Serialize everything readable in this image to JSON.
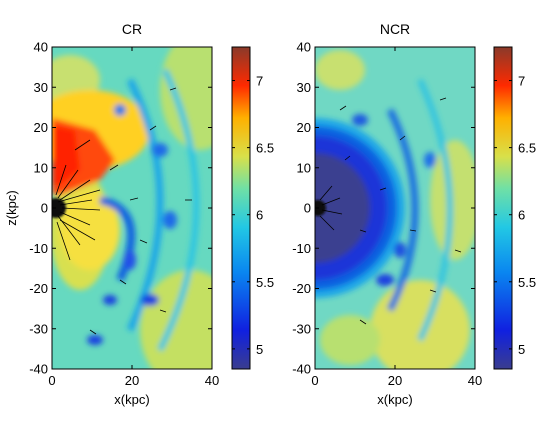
{
  "chart_data": [
    {
      "type": "heatmap",
      "title": "CR",
      "xlabel": "x(kpc)",
      "ylabel": "z(kpc)",
      "xlim": [
        0,
        40
      ],
      "ylim": [
        -40,
        40
      ],
      "xticks": [
        0,
        20,
        40
      ],
      "yticks": [
        40,
        30,
        20,
        10,
        0,
        -10,
        -20,
        -30,
        -40
      ],
      "colorbar": {
        "range": [
          4.85,
          7.25
        ],
        "ticks": [
          7,
          6.5,
          6,
          5.5,
          5
        ]
      },
      "overlay": "velocity-arrows",
      "features": [
        {
          "kind": "hot-cone",
          "level": 6.9,
          "x": [
            0,
            16
          ],
          "z": [
            10,
            24
          ]
        },
        {
          "kind": "dense-core",
          "x": 0,
          "z": 0,
          "radius": 4
        },
        {
          "kind": "shells",
          "level_range": [
            5.8,
            6.2
          ],
          "center": [
            0,
            0
          ],
          "radii": [
            18,
            28,
            38
          ]
        }
      ]
    },
    {
      "type": "heatmap",
      "title": "NCR",
      "xlabel": "x(kpc)",
      "ylabel": "",
      "xlim": [
        0,
        40
      ],
      "ylim": [
        -40,
        40
      ],
      "xticks": [
        0,
        20,
        40
      ],
      "yticks": [
        40,
        30,
        20,
        10,
        0,
        -10,
        -20,
        -30,
        -40
      ],
      "colorbar": {
        "range": [
          4.85,
          7.25
        ],
        "ticks": [
          7,
          6.5,
          6,
          5.5,
          5
        ]
      },
      "overlay": "velocity-arrows",
      "features": [
        {
          "kind": "cool-bubble",
          "level": 5.1,
          "center": [
            0,
            0
          ],
          "radius": 20
        },
        {
          "kind": "dense-core",
          "x": 0,
          "z": 0,
          "radius": 3
        },
        {
          "kind": "shells",
          "level_range": [
            5.8,
            6.3
          ],
          "center": [
            0,
            0
          ],
          "radii": [
            22,
            32
          ]
        }
      ]
    }
  ]
}
